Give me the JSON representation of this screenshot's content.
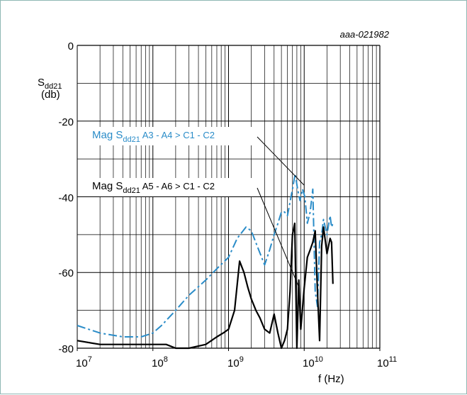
{
  "chart_data": {
    "type": "line",
    "ref_code": "aaa-021982",
    "ylabel_main": "S",
    "ylabel_sub": "dd21",
    "ylabel_unit": "(db)",
    "xlabel": "f (Hz)",
    "x_scale": "log",
    "xlim": [
      10000000,
      100000000000
    ],
    "ylim": [
      -80,
      0
    ],
    "yticks": [
      0,
      -20,
      -40,
      -60,
      -80
    ],
    "yticks_labels": [
      "0",
      "-20",
      "-40",
      "-60",
      "-80"
    ],
    "xticks_base": [
      "10",
      "10",
      "10",
      "10",
      "10"
    ],
    "xticks_exp": [
      "7",
      "8",
      "9",
      "10",
      "11"
    ],
    "grid": true,
    "colors": {
      "series_a3": "#2a8cc8",
      "series_a5": "#000000",
      "grid": "#000000"
    },
    "series": [
      {
        "name_prefix": "Mag S",
        "name_sub": "dd21",
        "name_suffix": " A3 - A4 > C1 - C2",
        "color": "#2a8cc8",
        "style": "dash-dot",
        "x": [
          10000000.0,
          20000000.0,
          40000000.0,
          70000000.0,
          100000000.0,
          130000000.0,
          200000000.0,
          300000000.0,
          500000000.0,
          700000000.0,
          1000000000.0,
          1300000000.0,
          1700000000.0,
          2000000000.0,
          2500000000.0,
          3000000000.0,
          3500000000.0,
          4000000000.0,
          4500000000.0,
          5000000000.0,
          5500000000.0,
          6000000000.0,
          7000000000.0,
          7600000000.0,
          8200000000.0,
          8800000000.0,
          9500000000.0,
          10200000000.0,
          11000000000.0,
          12000000000.0,
          13000000000.0,
          14000000000.0,
          15000000000.0,
          16000000000.0,
          17000000000.0,
          18000000000.0,
          20000000000.0,
          22000000000.0,
          23000000000.0,
          24000000000.0
        ],
        "y": [
          -74,
          -76,
          -77,
          -77,
          -76,
          -74,
          -70,
          -66,
          -62,
          -59,
          -56,
          -51,
          -48,
          -49,
          -54,
          -58,
          -54,
          -50,
          -47,
          -44,
          -44,
          -45,
          -38,
          -34,
          -38,
          -41,
          -38,
          -40,
          -47,
          -44,
          -38,
          -65,
          -69,
          -52,
          -50,
          -46,
          -50,
          -45,
          -48,
          -47
        ]
      },
      {
        "name_prefix": "Mag S",
        "name_sub": "dd21",
        "name_suffix": " A5 - A6 > C1 - C2",
        "color": "#000000",
        "style": "solid",
        "x": [
          10000000.0,
          20000000.0,
          40000000.0,
          70000000.0,
          100000000.0,
          150000000.0,
          200000000.0,
          300000000.0,
          500000000.0,
          700000000.0,
          850000000.0,
          1000000000.0,
          1200000000.0,
          1400000000.0,
          1600000000.0,
          1800000000.0,
          2000000000.0,
          2300000000.0,
          2600000000.0,
          3000000000.0,
          3500000000.0,
          4000000000.0,
          4500000000.0,
          5000000000.0,
          5500000000.0,
          6000000000.0,
          6500000000.0,
          7000000000.0,
          7500000000.0,
          8000000000.0,
          8500000000.0,
          9000000000.0,
          10000000000.0,
          11000000000.0,
          12000000000.0,
          13000000000.0,
          14000000000.0,
          15000000000.0,
          16000000000.0,
          17000000000.0,
          18000000000.0,
          20000000000.0,
          22000000000.0,
          23000000000.0,
          24000000000.0
        ],
        "y": [
          -78,
          -79,
          -79,
          -79,
          -79,
          -79,
          -80,
          -80,
          -79,
          -77,
          -76,
          -75,
          -70,
          -57,
          -60,
          -64,
          -67,
          -70,
          -72,
          -75,
          -76,
          -71,
          -76,
          -80,
          -78,
          -75,
          -65,
          -50,
          -47,
          -80,
          -62,
          -75,
          -64,
          -56,
          -54,
          -52,
          -49,
          -65,
          -78,
          -53,
          -48,
          -55,
          -51,
          -52,
          -63
        ]
      }
    ]
  }
}
